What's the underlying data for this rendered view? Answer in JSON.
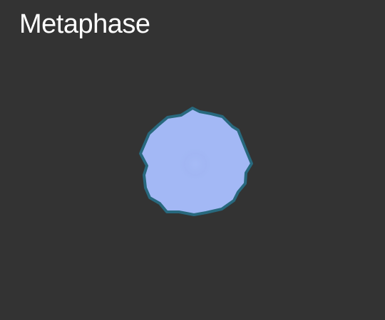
{
  "stage": {
    "title": "Metaphase"
  },
  "colors": {
    "background": "#333333",
    "title_text": "#ffffff",
    "cell_fill": "#a3b8f5",
    "cell_membrane": "#28697e",
    "spindle_center": "#a0b6f2"
  }
}
